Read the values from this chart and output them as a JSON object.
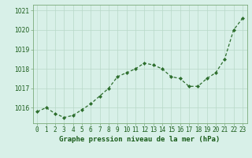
{
  "x": [
    0,
    1,
    2,
    3,
    4,
    5,
    6,
    7,
    8,
    9,
    10,
    11,
    12,
    13,
    14,
    15,
    16,
    17,
    18,
    19,
    20,
    21,
    22,
    23
  ],
  "y": [
    1015.8,
    1016.0,
    1015.7,
    1015.5,
    1015.6,
    1015.9,
    1016.2,
    1016.6,
    1017.0,
    1017.6,
    1017.8,
    1018.0,
    1018.3,
    1018.2,
    1018.0,
    1017.6,
    1017.5,
    1017.1,
    1017.1,
    1017.5,
    1017.8,
    1018.5,
    1020.0,
    1020.6
  ],
  "line_color": "#2d6e2d",
  "marker": "D",
  "marker_size": 2.0,
  "bg_color": "#d8f0e8",
  "grid_color": "#b8d8c8",
  "xlabel": "Graphe pression niveau de la mer (hPa)",
  "xlabel_color": "#1a5c1a",
  "tick_color": "#1a5c1a",
  "ylim": [
    1015.2,
    1021.3
  ],
  "xlim": [
    -0.5,
    23.5
  ],
  "yticks": [
    1016,
    1017,
    1018,
    1019,
    1020,
    1021
  ],
  "xtick_labels": [
    "0",
    "1",
    "2",
    "3",
    "4",
    "5",
    "6",
    "7",
    "8",
    "9",
    "10",
    "11",
    "12",
    "13",
    "14",
    "15",
    "16",
    "17",
    "18",
    "19",
    "20",
    "21",
    "22",
    "23"
  ],
  "spine_color": "#7aaa7a",
  "xlabel_fontsize": 6.5,
  "tick_fontsize": 5.5
}
